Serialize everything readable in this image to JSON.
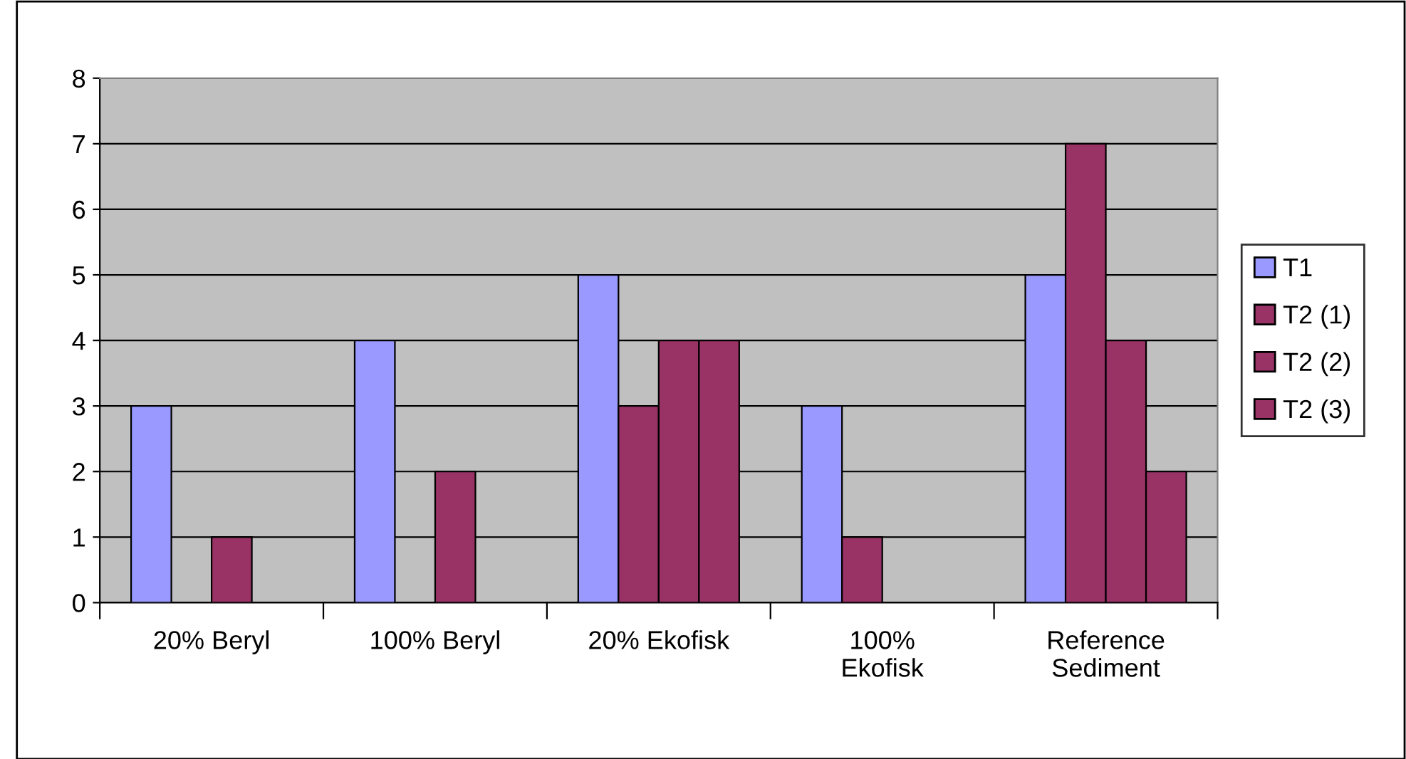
{
  "chart_data": {
    "type": "bar",
    "categories": [
      "20% Beryl",
      "100% Beryl",
      "20% Ekofisk",
      "100% Ekofisk",
      "Reference Sediment"
    ],
    "series": [
      {
        "name": "T1",
        "color": "#9999ff",
        "values": [
          3,
          4,
          5,
          3,
          5
        ]
      },
      {
        "name": "T2 (1)",
        "color": "#993366",
        "values": [
          null,
          null,
          3,
          1,
          7
        ]
      },
      {
        "name": "T2 (2)",
        "color": "#993366",
        "values": [
          1,
          2,
          4,
          null,
          4
        ]
      },
      {
        "name": "T2 (3)",
        "color": "#993366",
        "values": [
          null,
          null,
          4,
          null,
          2
        ]
      }
    ],
    "ylim": [
      0,
      8
    ],
    "yticks": [
      0,
      1,
      2,
      3,
      4,
      5,
      6,
      7,
      8
    ],
    "grid": "y",
    "legend": "right"
  }
}
